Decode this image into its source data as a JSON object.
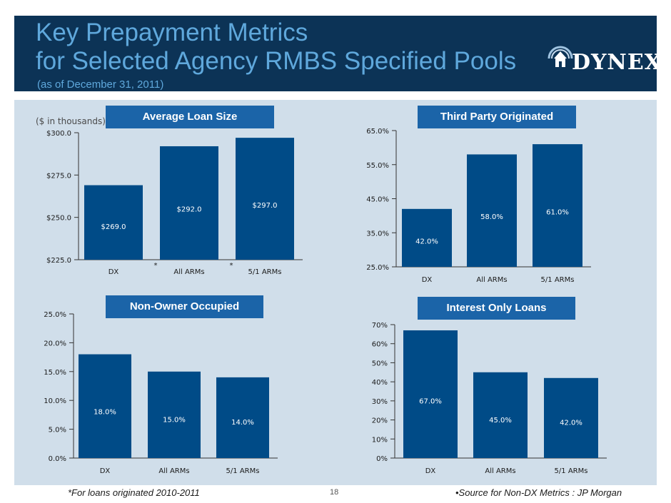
{
  "header": {
    "title_line1": "Key Prepayment Metrics",
    "title_line2": "for Selected Agency RMBS Specified Pools",
    "subtitle": "(as of December 31, 2011)",
    "logo_text": "DYNEX",
    "logo_icon": "building-arc-icon"
  },
  "units_note": "($ in thousands)",
  "colors": {
    "bar": "#004b87",
    "title_bg": "#1b64a8",
    "panel": "#d0deea",
    "header": "#0c3356"
  },
  "footer": {
    "left": "*For loans originated 2010-2011",
    "page": "18",
    "right": "•Source for Non-DX Metrics : JP Morgan"
  },
  "chart_data": [
    {
      "id": "avg-loan-size",
      "type": "bar",
      "title": "Average Loan Size",
      "categories": [
        "DX",
        "All ARMs",
        "5/1 ARMs"
      ],
      "values": [
        269.0,
        292.0,
        297.0
      ],
      "value_labels": [
        "$269.0",
        "$292.0",
        "$297.0"
      ],
      "ylim": [
        225,
        300
      ],
      "ticks": [
        225,
        250,
        275,
        300
      ],
      "tick_labels": [
        "$225.0",
        "$250.0",
        "$275.0",
        "$300.0"
      ],
      "markers": [
        "",
        "*",
        "*"
      ],
      "marker_side": "left"
    },
    {
      "id": "third-party",
      "type": "bar",
      "title": "Third Party Originated",
      "categories": [
        "DX",
        "All ARMs",
        "5/1 ARMs"
      ],
      "values": [
        42.0,
        58.0,
        61.0
      ],
      "value_labels": [
        "42.0%",
        "58.0%",
        "61.0%"
      ],
      "ylim": [
        25,
        65
      ],
      "ticks": [
        25,
        35,
        45,
        55,
        65
      ],
      "tick_labels": [
        "25.0%",
        "35.0%",
        "45.0%",
        "55.0%",
        "65.0%"
      ]
    },
    {
      "id": "non-owner",
      "type": "bar",
      "title": "Non-Owner Occupied",
      "categories": [
        "DX",
        "All ARMs",
        "5/1 ARMs"
      ],
      "values": [
        18.0,
        15.0,
        14.0
      ],
      "value_labels": [
        "18.0%",
        "15.0%",
        "14.0%"
      ],
      "ylim": [
        0,
        25
      ],
      "ticks": [
        0,
        5,
        10,
        15,
        20,
        25
      ],
      "tick_labels": [
        "0.0%",
        "5.0%",
        "10.0%",
        "15.0%",
        "20.0%",
        "25.0%"
      ]
    },
    {
      "id": "interest-only",
      "type": "bar",
      "title": "Interest Only Loans",
      "categories": [
        "DX",
        "All ARMs",
        "5/1 ARMs"
      ],
      "values": [
        67.0,
        45.0,
        42.0
      ],
      "value_labels": [
        "67.0%",
        "45.0%",
        "42.0%"
      ],
      "ylim": [
        0,
        70
      ],
      "ticks": [
        0,
        10,
        20,
        30,
        40,
        50,
        60,
        70
      ],
      "tick_labels": [
        "0%",
        "10%",
        "20%",
        "30%",
        "40%",
        "50%",
        "60%",
        "70%"
      ]
    }
  ]
}
